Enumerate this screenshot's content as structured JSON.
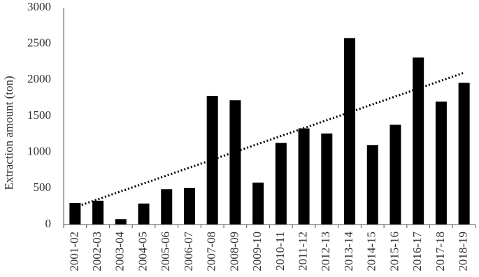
{
  "chart_data": {
    "type": "bar",
    "y_label": "Extraction amount (ton)",
    "categories": [
      "2001-02",
      "2002-03",
      "2003-04",
      "2004-05",
      "2005-06",
      "2006-07",
      "2007-08",
      "2008-09",
      "2009-10",
      "2010-11",
      "2011-12",
      "2012-13",
      "2013-14",
      "2014-15",
      "2015-16",
      "2016-17",
      "2017-18",
      "2018-19"
    ],
    "values": [
      300,
      330,
      75,
      290,
      490,
      505,
      1780,
      1720,
      580,
      1130,
      1330,
      1260,
      2580,
      1100,
      1380,
      2310,
      1700,
      1960
    ],
    "color": "#000000",
    "trendline": {
      "values": [
        240,
        2100
      ],
      "color": "#000000",
      "style": "dotted"
    },
    "ylim": [
      0,
      3000
    ],
    "yticks": [
      0,
      500,
      1000,
      1500,
      2000,
      2500,
      3000
    ],
    "grid": false
  }
}
